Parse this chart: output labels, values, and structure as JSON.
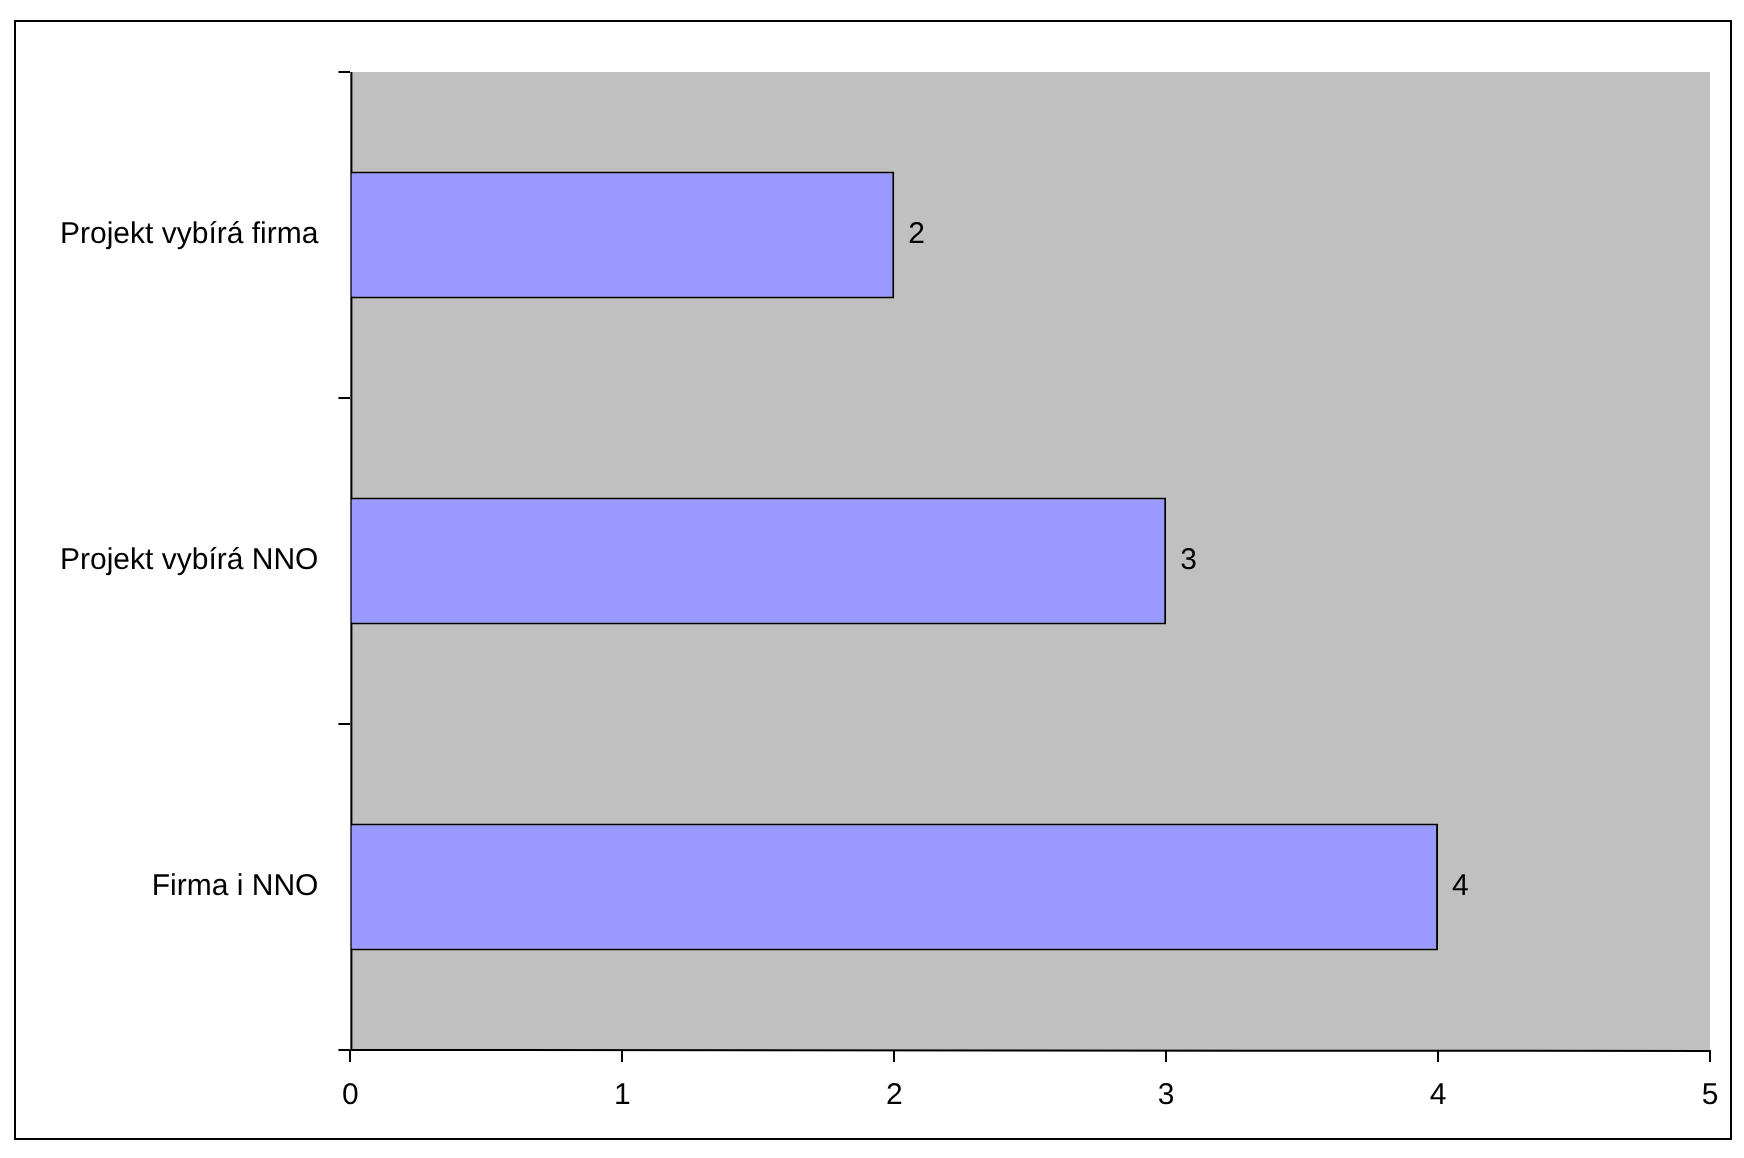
{
  "chart_data": {
    "type": "bar",
    "orientation": "horizontal",
    "categories": [
      "Projekt vybírá firma",
      "Projekt vybírá NNO",
      "Firma i NNO"
    ],
    "values": [
      2,
      3,
      4
    ],
    "color": "#9999ff",
    "xlim": [
      0,
      5
    ],
    "xticks": [
      0,
      1,
      2,
      3,
      4,
      5
    ],
    "grid": false,
    "legend": false,
    "data_labels": true
  }
}
